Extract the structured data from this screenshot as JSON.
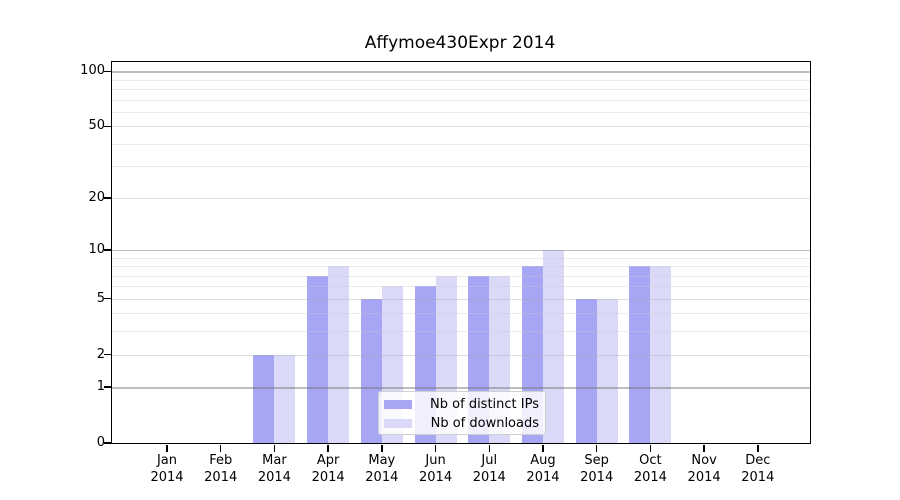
{
  "chart_data": {
    "type": "bar",
    "title": "Affymoe430Expr 2014",
    "categories": [
      "Jan 2014",
      "Feb 2014",
      "Mar 2014",
      "Apr 2014",
      "May 2014",
      "Jun 2014",
      "Jul 2014",
      "Aug 2014",
      "Sep 2014",
      "Oct 2014",
      "Nov 2014",
      "Dec 2014"
    ],
    "category_line1": [
      "Jan",
      "Feb",
      "Mar",
      "Apr",
      "May",
      "Jun",
      "Jul",
      "Aug",
      "Sep",
      "Oct",
      "Nov",
      "Dec"
    ],
    "category_line2": "2014",
    "series": [
      {
        "name": "Nb of distinct IPs",
        "color": "#a6a6f4",
        "values": [
          0,
          0,
          2,
          7,
          5,
          6,
          7,
          8,
          5,
          8,
          0,
          0
        ]
      },
      {
        "name": "Nb of downloads",
        "color": "#dadaf8",
        "values": [
          0,
          0,
          2,
          8,
          6,
          7,
          7,
          10,
          5,
          8,
          0,
          0
        ]
      }
    ],
    "y_axis": {
      "scale": "log1p",
      "ticks": [
        0,
        1,
        2,
        5,
        10,
        20,
        50,
        100
      ],
      "major_gridlines": [
        1,
        10,
        100
      ],
      "light_gridlines": [
        2,
        5,
        20,
        50
      ],
      "minor_gridlines": [
        3,
        4,
        6,
        7,
        8,
        9,
        30,
        40,
        60,
        70,
        80,
        90
      ],
      "ylim": [
        0,
        112
      ]
    },
    "grid": true,
    "grid_above_bars": true,
    "legend": {
      "location": "inside-bottom-center",
      "entries": [
        "Nb of distinct IPs",
        "Nb of downloads"
      ]
    },
    "colors": {
      "distinct_ips_bar": "#a6a6f4",
      "downloads_bar": "#dadaf8",
      "spine": "#000000",
      "major_grid": "#b9b9b9",
      "minor_grid": "#ececec"
    }
  }
}
